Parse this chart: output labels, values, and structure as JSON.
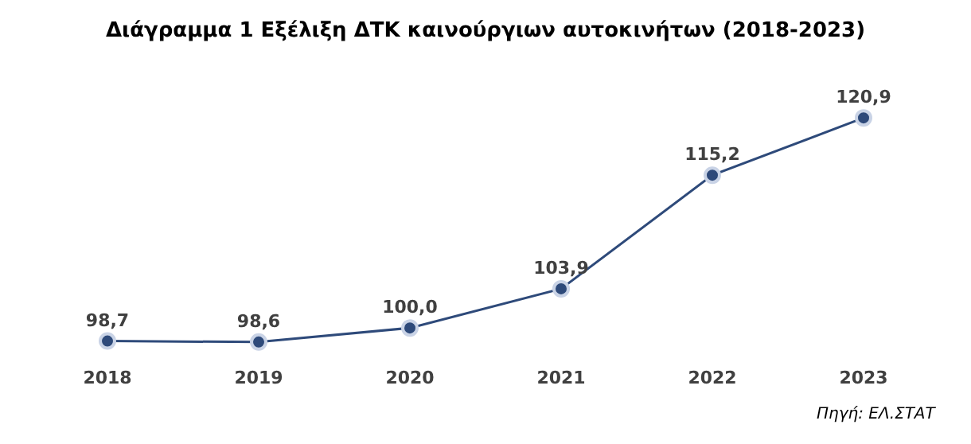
{
  "chart_data": {
    "type": "line",
    "title": "Διάγραμμα 1 Εξέλιξη ΔΤΚ καινούργιων αυτοκινήτων (2018-2023)",
    "categories": [
      "2018",
      "2019",
      "2020",
      "2021",
      "2022",
      "2023"
    ],
    "series": [
      {
        "color": "#2e4a7a",
        "values": [
          98.7,
          98.6,
          100.0,
          103.9,
          115.2,
          120.9
        ],
        "value_labels": [
          "98,7",
          "98,6",
          "100,0",
          "103,9",
          "115,2",
          "120,9"
        ]
      }
    ],
    "marker": "circle",
    "line_style": "solid",
    "tick_labels": "x",
    "annotations": [
      "Πηγή: ΕΛ.ΣΤΑΤ"
    ]
  }
}
